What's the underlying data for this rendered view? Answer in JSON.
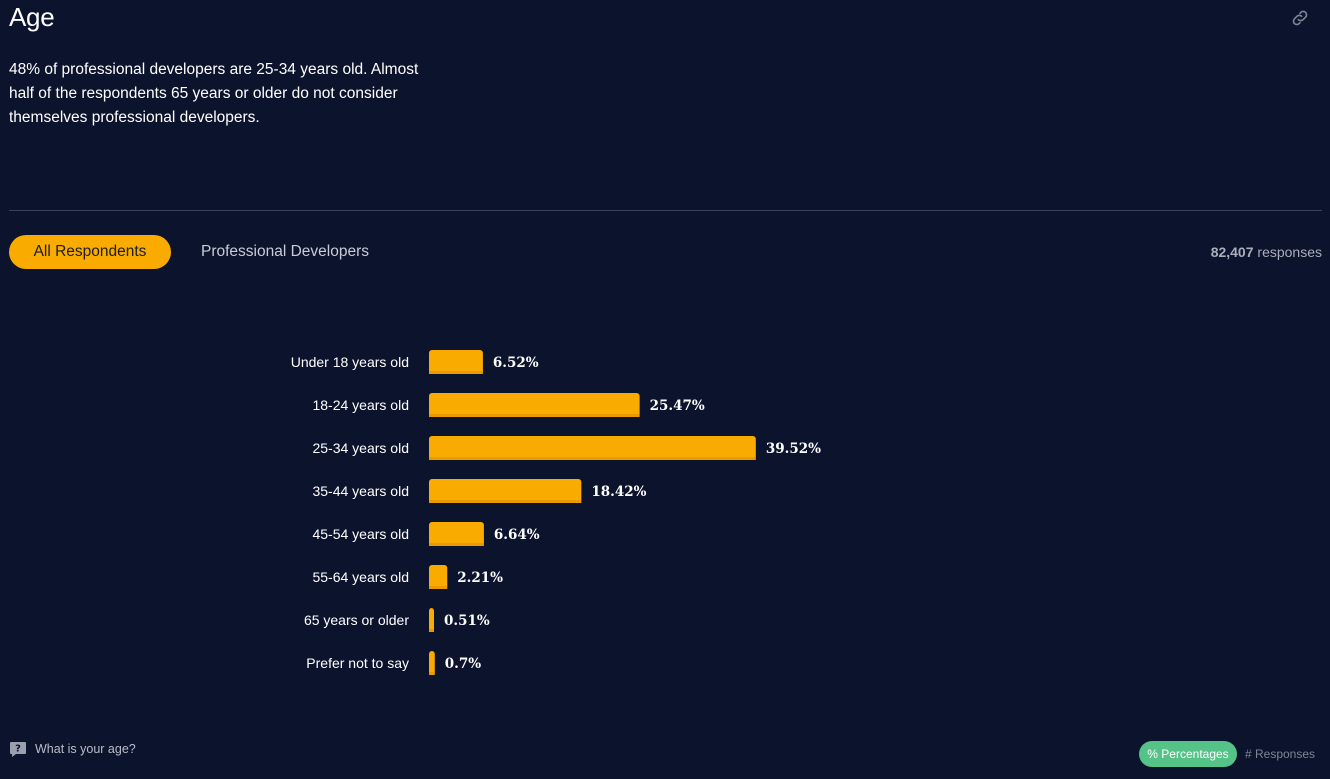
{
  "header": {
    "title": "Age",
    "description": "48% of professional developers are 25-34 years old. Almost half of the respondents 65 years or older do not consider themselves professional developers.",
    "link_icon": "link-icon"
  },
  "tabs": [
    {
      "label": "All Respondents",
      "active": true
    },
    {
      "label": "Professional Developers",
      "active": false
    }
  ],
  "responses": {
    "count": "82,407",
    "label": "responses"
  },
  "colors": {
    "background": "#0c132c",
    "bar": "#f9ab00",
    "bar_shadow": "#e89a00",
    "active_tab": "#f9ab00",
    "toggle_active": "#55c288"
  },
  "chart_data": {
    "type": "bar",
    "orientation": "horizontal",
    "categories": [
      "Under 18 years old",
      "18-24 years old",
      "25-34 years old",
      "35-44 years old",
      "45-54 years old",
      "55-64 years old",
      "65 years or older",
      "Prefer not to say"
    ],
    "values": [
      6.52,
      25.47,
      39.52,
      18.42,
      6.64,
      2.21,
      0.51,
      0.7
    ],
    "value_labels": [
      "6.52%",
      "25.47%",
      "39.52%",
      "18.42%",
      "6.64%",
      "2.21%",
      "0.51%",
      "0.7%"
    ],
    "grid": false,
    "legend": "none"
  },
  "footer": {
    "question": "What is your age?",
    "question_icon": "question-icon",
    "toggle": [
      {
        "label": "% Percentages",
        "active": true
      },
      {
        "label": "# Responses",
        "active": false
      }
    ]
  }
}
